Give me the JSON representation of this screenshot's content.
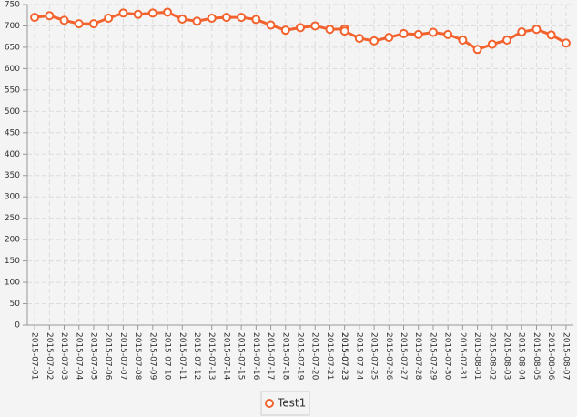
{
  "chart_data": {
    "type": "line",
    "categories": [
      "2015-07-01",
      "2015-07-02",
      "2015-07-03",
      "2015-07-04",
      "2015-07-05",
      "2015-07-06",
      "2015-07-07",
      "2015-07-08",
      "2015-07-09",
      "2015-07-10",
      "2015-07-11",
      "2015-07-12",
      "2015-07-13",
      "2015-07-14",
      "2015-07-15",
      "2015-07-16",
      "2015-07-17",
      "2015-07-18",
      "2015-07-19",
      "2015-07-20",
      "2015-07-21",
      "2015-07-23",
      "2015-07-23",
      "2015-07-24",
      "2015-07-25",
      "2015-07-26",
      "2015-07-27",
      "2015-07-28",
      "2015-07-29",
      "2015-07-30",
      "2015-07-31",
      "2015-08-01",
      "2015-08-02",
      "2015-08-03",
      "2015-08-04",
      "2015-08-05",
      "2015-08-06",
      "2015-08-07"
    ],
    "series": [
      {
        "name": "Test1",
        "color": "#f3622d",
        "values": [
          720,
          724,
          713,
          705,
          705,
          718,
          730,
          727,
          730,
          732,
          716,
          711,
          718,
          720,
          720,
          715,
          702,
          690,
          696,
          700,
          692,
          693,
          688,
          671,
          665,
          673,
          682,
          680,
          685,
          680,
          667,
          645,
          657,
          667,
          686,
          692,
          679,
          660
        ]
      }
    ],
    "ylim": [
      0,
      750
    ],
    "yticks": [
      0,
      50,
      100,
      150,
      200,
      250,
      300,
      350,
      400,
      450,
      500,
      550,
      600,
      650,
      700,
      750
    ],
    "grid": true,
    "legend": "bottom"
  }
}
